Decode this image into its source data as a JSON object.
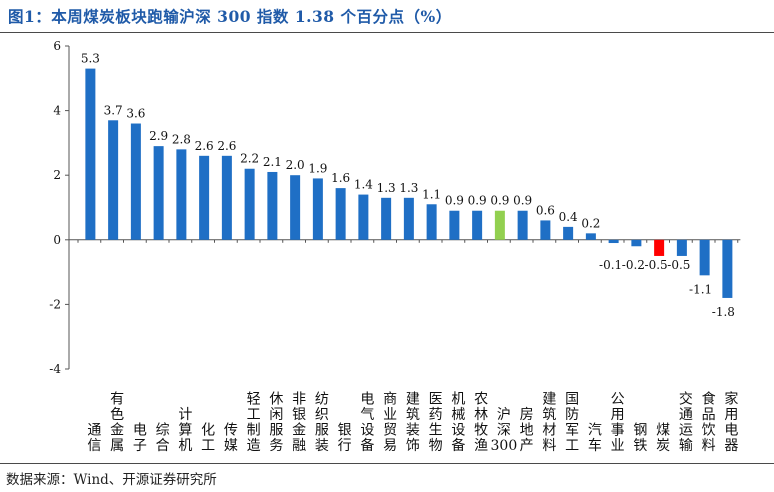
{
  "title": "图1：本周煤炭板块跑输沪深 300 指数 1.38 个百分点（%）",
  "source": "数据来源：Wind、开源证券研究所",
  "chart_data": {
    "type": "bar",
    "categories": [
      "通信",
      "有色金属",
      "电子",
      "综合",
      "计算机",
      "化工",
      "传媒",
      "轻工制造",
      "休闲服务",
      "非银金融",
      "纺织服装",
      "银行",
      "电气设备",
      "商业贸易",
      "建筑装饰",
      "医药生物",
      "机械设备",
      "农林牧渔",
      "沪深300",
      "房地产",
      "建筑材料",
      "国防军工",
      "汽车",
      "公用事业",
      "钢铁",
      "煤炭",
      "交通运输",
      "食品饮料",
      "家用电器"
    ],
    "values": [
      5.3,
      3.7,
      3.6,
      2.9,
      2.8,
      2.6,
      2.6,
      2.2,
      2.1,
      2.0,
      1.9,
      1.6,
      1.4,
      1.3,
      1.3,
      1.1,
      0.9,
      0.9,
      0.9,
      0.9,
      0.6,
      0.4,
      0.2,
      -0.1,
      -0.2,
      -0.5,
      -0.5,
      -1.1,
      -1.8
    ],
    "value_labels": [
      "5.3",
      "3.7",
      "3.6",
      "2.9",
      "2.8",
      "2.6",
      "2.6",
      "2.2",
      "2.1",
      "2.0",
      "1.9",
      "1.6",
      "1.4",
      "1.3",
      "1.3",
      "1.1",
      "0.9",
      "0.9",
      "0.9",
      "0.9",
      "0.6",
      "0.4",
      "0.2",
      "-0.1",
      "-0.2",
      "-0.5",
      "-0.5",
      "-1.1",
      "-1.8"
    ],
    "ylim": [
      -4,
      6
    ],
    "yticks": [
      "6",
      "4",
      "2",
      "0",
      "-2",
      "-4"
    ],
    "highlight": {
      "煤炭": "#ff0000",
      "沪深300": "#92d050"
    },
    "bar_color": "#1f6fc5",
    "grid": false
  }
}
